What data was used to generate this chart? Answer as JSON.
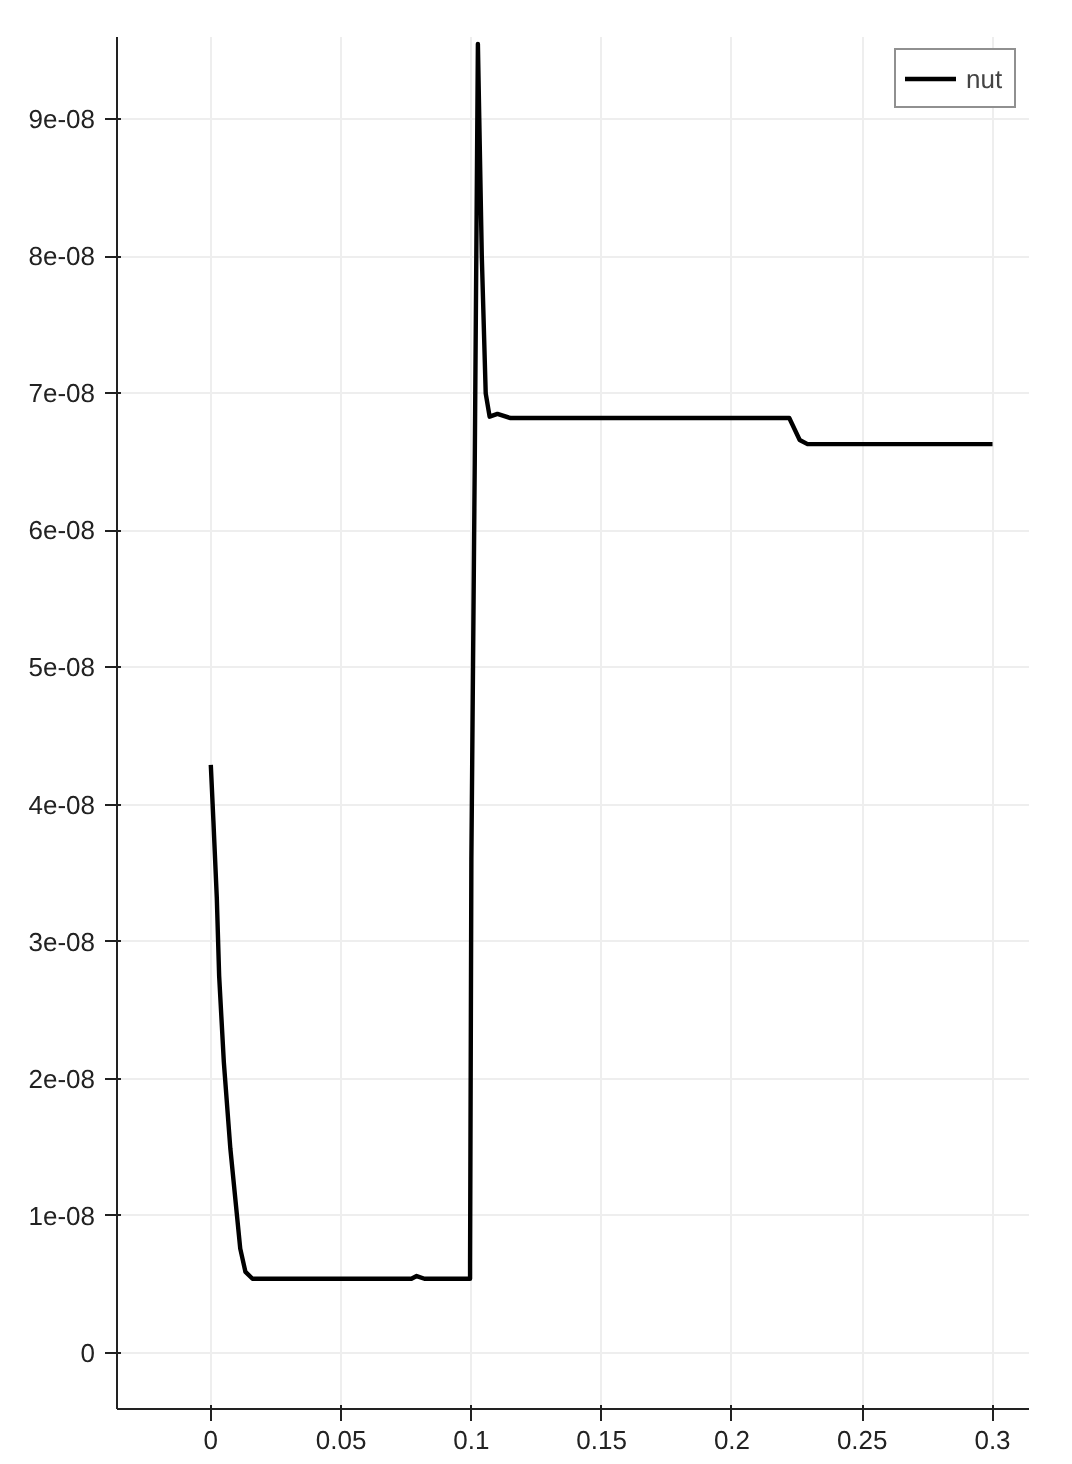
{
  "chart_data": {
    "type": "line",
    "xlim": [
      -0.036,
      0.314
    ],
    "ylim": [
      -4.1e-09,
      9.6e-08
    ],
    "xticks": [
      0,
      0.05,
      0.1,
      0.15,
      0.2,
      0.25,
      0.3
    ],
    "yticks": [
      0,
      {
        "value": 1e-08,
        "label": "1e-08"
      },
      {
        "value": 2e-08,
        "label": "2e-08"
      },
      {
        "value": 3e-08,
        "label": "3e-08"
      },
      {
        "value": 4e-08,
        "label": "4e-08"
      },
      {
        "value": 5e-08,
        "label": "5e-08"
      },
      {
        "value": 6e-08,
        "label": "6e-08"
      },
      {
        "value": 7e-08,
        "label": "7e-08"
      },
      {
        "value": 8e-08,
        "label": "8e-08"
      },
      {
        "value": 9e-08,
        "label": "9e-08"
      }
    ],
    "grid": true,
    "legend": "top right",
    "line_style": "solid",
    "marker": "none",
    "series": [
      {
        "name": "nut",
        "color": "#000000",
        "x": [
          0,
          0.001,
          0.0023,
          0.0032,
          0.005,
          0.0075,
          0.0113,
          0.0133,
          0.016,
          0.05,
          0.077,
          0.079,
          0.082,
          0.0995,
          0.0995,
          0.1,
          0.1013,
          0.1025,
          0.104,
          0.1055,
          0.107,
          0.11,
          0.115,
          0.222,
          0.223,
          0.226,
          0.229,
          0.3
        ],
        "values": [
          4.29e-08,
          3.88e-08,
          3.32e-08,
          2.75e-08,
          2.12e-08,
          1.49e-08,
          7.6e-09,
          5.9e-09,
          5.4e-09,
          5.4e-09,
          5.4e-09,
          5.6e-09,
          5.4e-09,
          5.4e-09,
          6.5e-09,
          3.6e-08,
          6.5e-08,
          9.55e-08,
          8e-08,
          7e-08,
          6.83e-08,
          6.85e-08,
          6.82e-08,
          6.82e-08,
          6.78e-08,
          6.66e-08,
          6.63e-08,
          6.63e-08
        ]
      }
    ]
  }
}
